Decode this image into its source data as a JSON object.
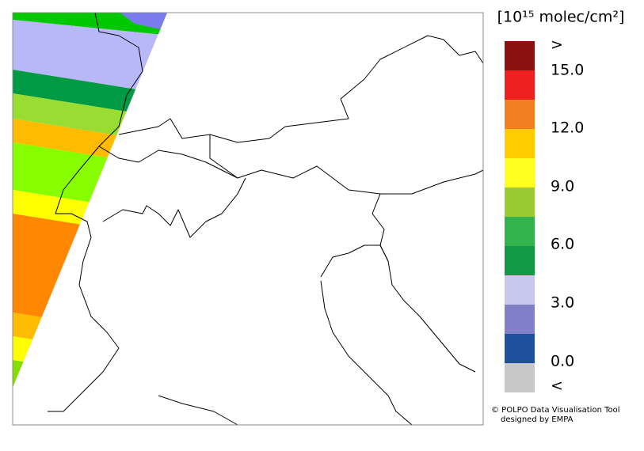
{
  "colorbar": {
    "title": "[10¹⁵ molec/cm²]",
    "labels": [
      ">",
      "15.0",
      "12.0",
      "9.0",
      "6.0",
      "3.0",
      "0.0",
      "<"
    ]
  },
  "credits": [
    "© POLPO Data Visualisation Tool",
    "designed by EMPA"
  ]
}
